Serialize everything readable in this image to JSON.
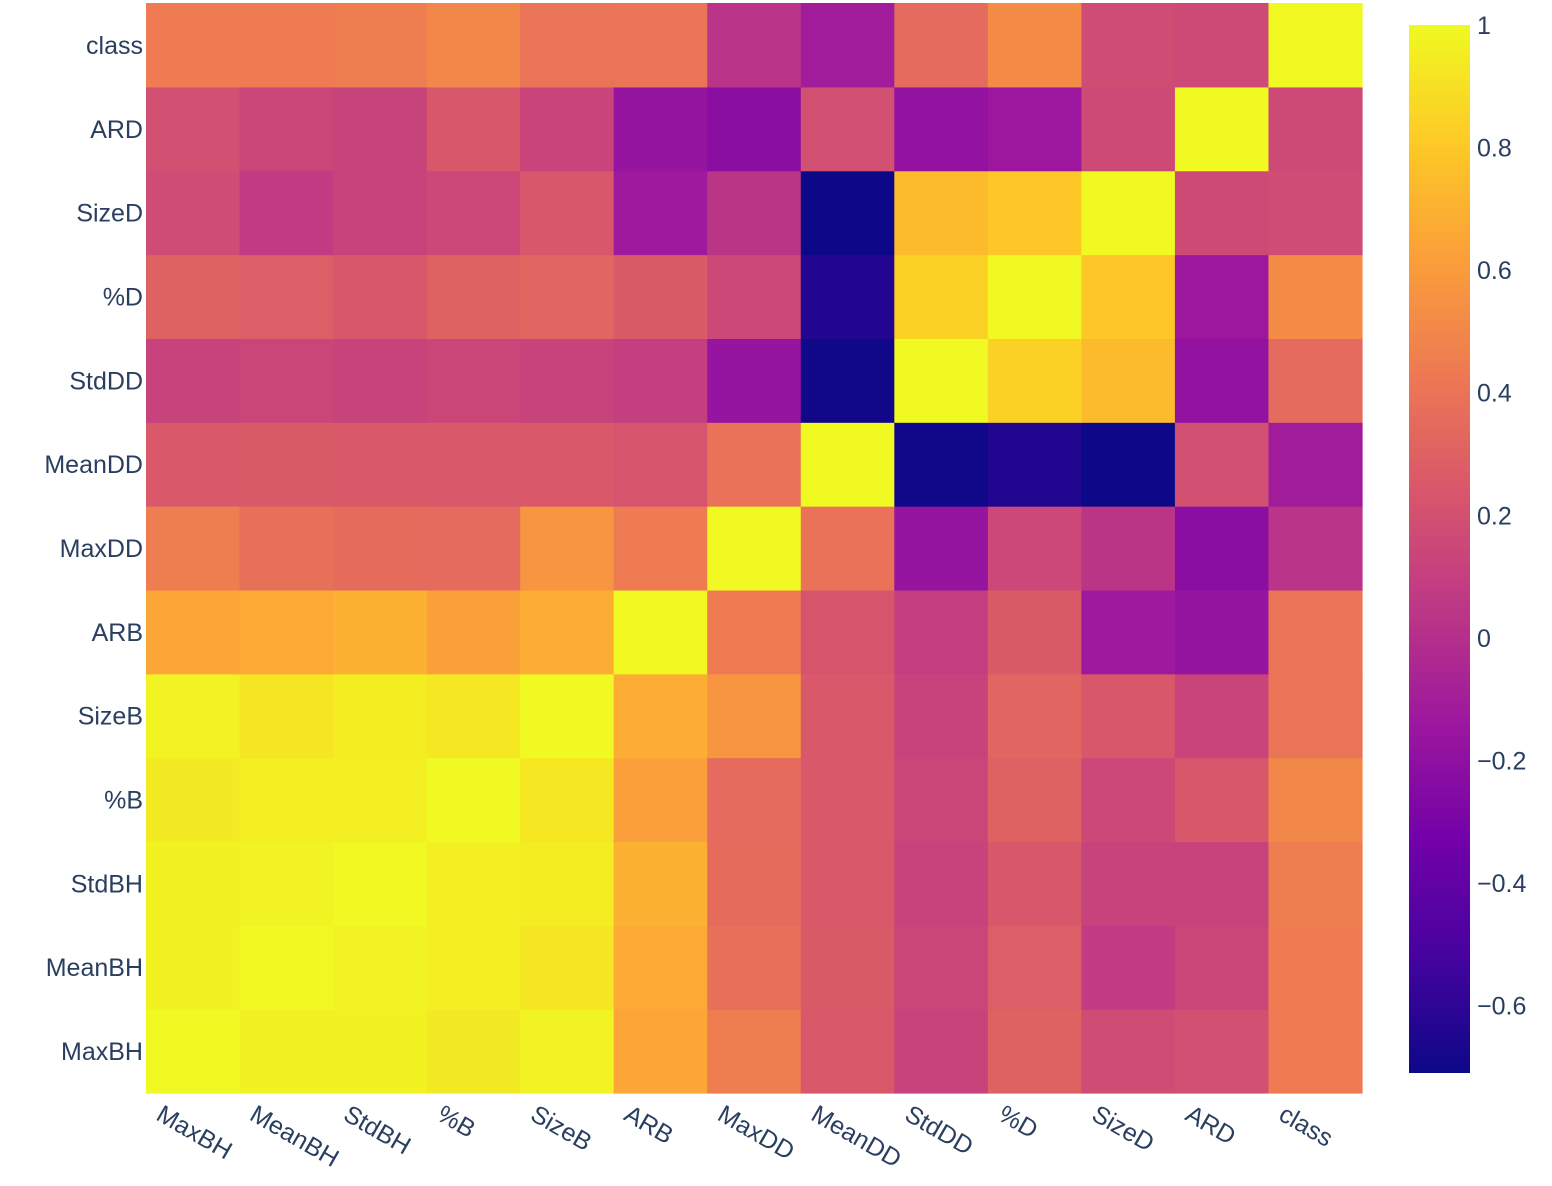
{
  "chart_data": {
    "type": "heatmap",
    "title": "",
    "xlabel": "",
    "ylabel": "",
    "labels": [
      "MaxBH",
      "MeanBH",
      "StdBH",
      "%B",
      "SizeB",
      "ARB",
      "MaxDD",
      "MeanDD",
      "StdDD",
      "%D",
      "SizeD",
      "ARD",
      "class"
    ],
    "x": [
      "MaxBH",
      "MeanBH",
      "StdBH",
      "%B",
      "SizeB",
      "ARB",
      "MaxDD",
      "MeanDD",
      "StdDD",
      "%D",
      "SizeD",
      "ARD",
      "class"
    ],
    "y": [
      "MaxBH",
      "MeanBH",
      "StdBH",
      "%B",
      "SizeB",
      "ARB",
      "MaxDD",
      "MeanDD",
      "StdDD",
      "%D",
      "SizeD",
      "ARD",
      "class"
    ],
    "z": [
      [
        1.0,
        0.97,
        0.97,
        0.94,
        0.98,
        0.65,
        0.45,
        0.25,
        0.12,
        0.3,
        0.18,
        0.2,
        0.44
      ],
      [
        0.97,
        1.0,
        0.98,
        0.96,
        0.92,
        0.67,
        0.38,
        0.26,
        0.14,
        0.28,
        0.08,
        0.14,
        0.44
      ],
      [
        0.97,
        0.98,
        1.0,
        0.96,
        0.95,
        0.7,
        0.36,
        0.25,
        0.12,
        0.24,
        0.12,
        0.12,
        0.45
      ],
      [
        0.94,
        0.96,
        0.96,
        1.0,
        0.93,
        0.62,
        0.35,
        0.25,
        0.14,
        0.3,
        0.15,
        0.24,
        0.5
      ],
      [
        0.98,
        0.92,
        0.95,
        0.93,
        1.0,
        0.68,
        0.57,
        0.25,
        0.12,
        0.32,
        0.24,
        0.13,
        0.4
      ],
      [
        0.65,
        0.67,
        0.7,
        0.62,
        0.68,
        1.0,
        0.44,
        0.23,
        0.1,
        0.26,
        -0.13,
        -0.17,
        0.41
      ],
      [
        0.45,
        0.38,
        0.36,
        0.35,
        0.57,
        0.44,
        1.0,
        0.39,
        -0.17,
        0.15,
        0.04,
        -0.22,
        0.03
      ],
      [
        0.25,
        0.26,
        0.25,
        0.25,
        0.25,
        0.23,
        0.39,
        1.0,
        -0.7,
        -0.64,
        -0.71,
        0.2,
        -0.11
      ],
      [
        0.12,
        0.14,
        0.12,
        0.14,
        0.12,
        0.1,
        -0.17,
        -0.7,
        1.0,
        0.84,
        0.74,
        -0.18,
        0.35
      ],
      [
        0.3,
        0.28,
        0.24,
        0.3,
        0.32,
        0.26,
        0.15,
        -0.64,
        0.84,
        1.0,
        0.8,
        -0.14,
        0.52
      ],
      [
        0.18,
        0.08,
        0.12,
        0.15,
        0.24,
        -0.13,
        0.04,
        -0.71,
        0.74,
        0.8,
        1.0,
        0.16,
        0.18
      ],
      [
        0.2,
        0.14,
        0.12,
        0.24,
        0.13,
        -0.17,
        -0.22,
        0.2,
        -0.18,
        -0.14,
        0.16,
        1.0,
        0.16
      ],
      [
        0.44,
        0.44,
        0.45,
        0.5,
        0.4,
        0.41,
        0.03,
        -0.11,
        0.35,
        0.52,
        0.18,
        0.16,
        1.0
      ]
    ],
    "zmin": -0.71,
    "zmax": 1.0,
    "colorscale": "plasma",
    "colorbar": {
      "ticks": [
        1,
        0.8,
        0.6,
        0.4,
        0.2,
        0,
        -0.2,
        -0.4,
        -0.6
      ],
      "tick_labels": [
        "1",
        "0.8",
        "0.6",
        "0.4",
        "0.2",
        "0",
        "−0.2",
        "−0.4",
        "−0.6"
      ]
    },
    "grid": false,
    "legend": "colorbar-right"
  }
}
